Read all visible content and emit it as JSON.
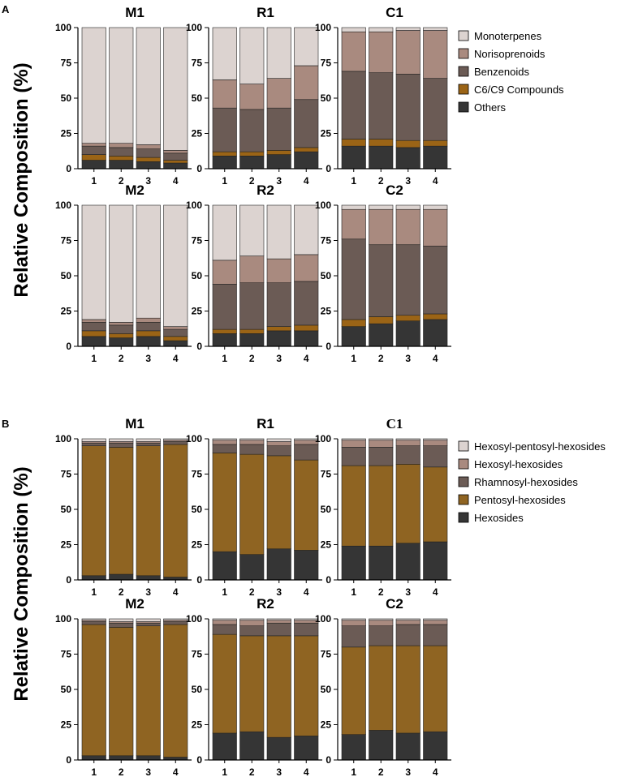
{
  "panels": [
    {
      "letter": "A",
      "ylabel": "Relative Composition (%)",
      "legend": [
        {
          "name": "Monoterpenes",
          "color": "#DCD3D0"
        },
        {
          "name": "Norisoprenoids",
          "color": "#A98A7F"
        },
        {
          "name": "Benzenoids",
          "color": "#6B5B55"
        },
        {
          "name": "C6/C9 Compounds",
          "color": "#9B6416"
        },
        {
          "name": "Others",
          "color": "#353535"
        }
      ]
    },
    {
      "letter": "B",
      "ylabel": "Relative Composition (%)",
      "legend": [
        {
          "name": "Hexosyl-pentosyl-hexosides",
          "color": "#DCD3D0"
        },
        {
          "name": "Hexosyl-hexosides",
          "color": "#A98A7F"
        },
        {
          "name": "Rhamnosyl-hexosides",
          "color": "#6B5B55"
        },
        {
          "name": "Pentosyl-hexosides",
          "color": "#8F6422"
        },
        {
          "name": "Hexosides",
          "color": "#353535"
        }
      ]
    }
  ],
  "chart_data": [
    {
      "panel": 0,
      "title": "M1",
      "type": "bar",
      "stacked": true,
      "categories": [
        "1",
        "2",
        "3",
        "4"
      ],
      "ylim": [
        0,
        100
      ],
      "yticks": [
        0,
        25,
        50,
        75,
        100
      ],
      "series": [
        {
          "name": "Others",
          "values": [
            6,
            6,
            5,
            4
          ]
        },
        {
          "name": "C6/C9 Compounds",
          "values": [
            4,
            3,
            3,
            2
          ]
        },
        {
          "name": "Benzenoids",
          "values": [
            6,
            6,
            6,
            5
          ]
        },
        {
          "name": "Norisoprenoids",
          "values": [
            2,
            3,
            3,
            2
          ]
        },
        {
          "name": "Monoterpenes",
          "values": [
            82,
            82,
            83,
            87
          ]
        }
      ]
    },
    {
      "panel": 0,
      "title": "R1",
      "type": "bar",
      "stacked": true,
      "categories": [
        "1",
        "2",
        "3",
        "4"
      ],
      "ylim": [
        0,
        100
      ],
      "yticks": [
        0,
        25,
        50,
        75,
        100
      ],
      "series": [
        {
          "name": "Others",
          "values": [
            9,
            9,
            10,
            12
          ]
        },
        {
          "name": "C6/C9 Compounds",
          "values": [
            3,
            3,
            3,
            3
          ]
        },
        {
          "name": "Benzenoids",
          "values": [
            31,
            30,
            30,
            34
          ]
        },
        {
          "name": "Norisoprenoids",
          "values": [
            20,
            18,
            21,
            24
          ]
        },
        {
          "name": "Monoterpenes",
          "values": [
            37,
            40,
            36,
            27
          ]
        }
      ]
    },
    {
      "panel": 0,
      "title": "C1",
      "type": "bar",
      "stacked": true,
      "categories": [
        "1",
        "2",
        "3",
        "4"
      ],
      "ylim": [
        0,
        100
      ],
      "yticks": [
        0,
        25,
        50,
        75,
        100
      ],
      "series": [
        {
          "name": "Others",
          "values": [
            16,
            16,
            15,
            16
          ]
        },
        {
          "name": "C6/C9 Compounds",
          "values": [
            5,
            5,
            5,
            4
          ]
        },
        {
          "name": "Benzenoids",
          "values": [
            48,
            47,
            47,
            44
          ]
        },
        {
          "name": "Norisoprenoids",
          "values": [
            28,
            29,
            31,
            34
          ]
        },
        {
          "name": "Monoterpenes",
          "values": [
            3,
            3,
            2,
            2
          ]
        }
      ]
    },
    {
      "panel": 0,
      "title": "M2",
      "type": "bar",
      "stacked": true,
      "categories": [
        "1",
        "2",
        "3",
        "4"
      ],
      "ylim": [
        0,
        100
      ],
      "yticks": [
        0,
        25,
        50,
        75,
        100
      ],
      "series": [
        {
          "name": "Others",
          "values": [
            7,
            6,
            7,
            4
          ]
        },
        {
          "name": "C6/C9 Compounds",
          "values": [
            4,
            3,
            4,
            3
          ]
        },
        {
          "name": "Benzenoids",
          "values": [
            6,
            6,
            6,
            5
          ]
        },
        {
          "name": "Norisoprenoids",
          "values": [
            2,
            2,
            3,
            2
          ]
        },
        {
          "name": "Monoterpenes",
          "values": [
            81,
            83,
            80,
            86
          ]
        }
      ]
    },
    {
      "panel": 0,
      "title": "R2",
      "type": "bar",
      "stacked": true,
      "categories": [
        "1",
        "2",
        "3",
        "4"
      ],
      "ylim": [
        0,
        100
      ],
      "yticks": [
        0,
        25,
        50,
        75,
        100
      ],
      "series": [
        {
          "name": "Others",
          "values": [
            9,
            9,
            11,
            11
          ]
        },
        {
          "name": "C6/C9 Compounds",
          "values": [
            3,
            3,
            3,
            4
          ]
        },
        {
          "name": "Benzenoids",
          "values": [
            32,
            33,
            31,
            31
          ]
        },
        {
          "name": "Norisoprenoids",
          "values": [
            17,
            19,
            17,
            19
          ]
        },
        {
          "name": "Monoterpenes",
          "values": [
            39,
            36,
            38,
            35
          ]
        }
      ]
    },
    {
      "panel": 0,
      "title": "C2",
      "type": "bar",
      "stacked": true,
      "categories": [
        "1",
        "2",
        "3",
        "4"
      ],
      "ylim": [
        0,
        100
      ],
      "yticks": [
        0,
        25,
        50,
        75,
        100
      ],
      "series": [
        {
          "name": "Others",
          "values": [
            14,
            16,
            18,
            19
          ]
        },
        {
          "name": "C6/C9 Compounds",
          "values": [
            5,
            5,
            4,
            4
          ]
        },
        {
          "name": "Benzenoids",
          "values": [
            57,
            51,
            50,
            48
          ]
        },
        {
          "name": "Norisoprenoids",
          "values": [
            21,
            25,
            25,
            26
          ]
        },
        {
          "name": "Monoterpenes",
          "values": [
            3,
            3,
            3,
            3
          ]
        }
      ]
    },
    {
      "panel": 1,
      "title": "M1",
      "type": "bar",
      "stacked": true,
      "categories": [
        "1",
        "2",
        "3",
        "4"
      ],
      "ylim": [
        0,
        100
      ],
      "yticks": [
        0,
        25,
        50,
        75,
        100
      ],
      "series": [
        {
          "name": "Hexosides",
          "values": [
            3,
            4,
            3,
            2
          ]
        },
        {
          "name": "Pentosyl-hexosides",
          "values": [
            92,
            90,
            92,
            94
          ]
        },
        {
          "name": "Rhamnosyl-hexosides",
          "values": [
            2,
            3,
            2,
            2
          ]
        },
        {
          "name": "Hexosyl-hexosides",
          "values": [
            1,
            1,
            1,
            1
          ]
        },
        {
          "name": "Hexosyl-pentosyl-hexosides",
          "values": [
            2,
            2,
            2,
            1
          ]
        }
      ]
    },
    {
      "panel": 1,
      "title": "R1",
      "type": "bar",
      "stacked": true,
      "categories": [
        "1",
        "2",
        "3",
        "4"
      ],
      "ylim": [
        0,
        100
      ],
      "yticks": [
        0,
        25,
        50,
        75,
        100
      ],
      "series": [
        {
          "name": "Hexosides",
          "values": [
            20,
            18,
            22,
            21
          ]
        },
        {
          "name": "Pentosyl-hexosides",
          "values": [
            70,
            71,
            66,
            64
          ]
        },
        {
          "name": "Rhamnosyl-hexosides",
          "values": [
            6,
            7,
            7,
            11
          ]
        },
        {
          "name": "Hexosyl-hexosides",
          "values": [
            3,
            3,
            3,
            3
          ]
        },
        {
          "name": "Hexosyl-pentosyl-hexosides",
          "values": [
            1,
            1,
            2,
            1
          ]
        }
      ]
    },
    {
      "panel": 1,
      "title": "C1",
      "type": "bar",
      "stacked": true,
      "categories": [
        "1",
        "2",
        "3",
        "4"
      ],
      "ylim": [
        0,
        100
      ],
      "yticks": [
        0,
        25,
        50,
        75,
        100
      ],
      "series": [
        {
          "name": "Hexosides",
          "values": [
            24,
            24,
            26,
            27
          ]
        },
        {
          "name": "Pentosyl-hexosides",
          "values": [
            57,
            57,
            56,
            53
          ]
        },
        {
          "name": "Rhamnosyl-hexosides",
          "values": [
            13,
            13,
            13,
            15
          ]
        },
        {
          "name": "Hexosyl-hexosides",
          "values": [
            5,
            5,
            4,
            4
          ]
        },
        {
          "name": "Hexosyl-pentosyl-hexosides",
          "values": [
            1,
            1,
            1,
            1
          ]
        }
      ]
    },
    {
      "panel": 1,
      "title": "M2",
      "type": "bar",
      "stacked": true,
      "categories": [
        "1",
        "2",
        "3",
        "4"
      ],
      "ylim": [
        0,
        100
      ],
      "yticks": [
        0,
        25,
        50,
        75,
        100
      ],
      "series": [
        {
          "name": "Hexosides",
          "values": [
            3,
            3,
            3,
            2
          ]
        },
        {
          "name": "Pentosyl-hexosides",
          "values": [
            93,
            91,
            92,
            94
          ]
        },
        {
          "name": "Rhamnosyl-hexosides",
          "values": [
            2,
            3,
            2,
            2
          ]
        },
        {
          "name": "Hexosyl-hexosides",
          "values": [
            1,
            1,
            1,
            1
          ]
        },
        {
          "name": "Hexosyl-pentosyl-hexosides",
          "values": [
            1,
            2,
            2,
            1
          ]
        }
      ]
    },
    {
      "panel": 1,
      "title": "R2",
      "type": "bar",
      "stacked": true,
      "categories": [
        "1",
        "2",
        "3",
        "4"
      ],
      "ylim": [
        0,
        100
      ],
      "yticks": [
        0,
        25,
        50,
        75,
        100
      ],
      "series": [
        {
          "name": "Hexosides",
          "values": [
            19,
            20,
            16,
            17
          ]
        },
        {
          "name": "Pentosyl-hexosides",
          "values": [
            70,
            68,
            72,
            71
          ]
        },
        {
          "name": "Rhamnosyl-hexosides",
          "values": [
            7,
            7,
            9,
            9
          ]
        },
        {
          "name": "Hexosyl-hexosides",
          "values": [
            3,
            4,
            2,
            2
          ]
        },
        {
          "name": "Hexosyl-pentosyl-hexosides",
          "values": [
            1,
            1,
            1,
            1
          ]
        }
      ]
    },
    {
      "panel": 1,
      "title": "C2",
      "type": "bar",
      "stacked": true,
      "categories": [
        "1",
        "2",
        "3",
        "4"
      ],
      "ylim": [
        0,
        100
      ],
      "yticks": [
        0,
        25,
        50,
        75,
        100
      ],
      "series": [
        {
          "name": "Hexosides",
          "values": [
            18,
            21,
            19,
            20
          ]
        },
        {
          "name": "Pentosyl-hexosides",
          "values": [
            62,
            60,
            62,
            61
          ]
        },
        {
          "name": "Rhamnosyl-hexosides",
          "values": [
            15,
            14,
            15,
            15
          ]
        },
        {
          "name": "Hexosyl-hexosides",
          "values": [
            4,
            4,
            3,
            3
          ]
        },
        {
          "name": "Hexosyl-pentosyl-hexosides",
          "values": [
            1,
            1,
            1,
            1
          ]
        }
      ]
    }
  ]
}
